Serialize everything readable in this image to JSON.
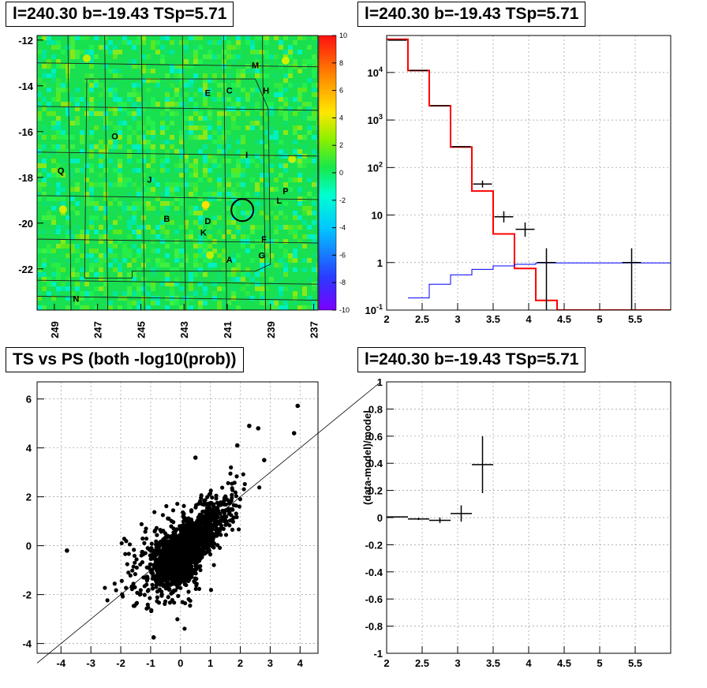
{
  "chart_data": [
    {
      "type": "heatmap",
      "title": "l=240.30 b=-19.43 TSp=5.71",
      "xlim": [
        249.8,
        236.8
      ],
      "ylim": [
        -23.8,
        -11.8
      ],
      "x_ticks": [
        "249",
        "247",
        "245",
        "243",
        "241",
        "239",
        "237"
      ],
      "y_ticks": [
        "-12",
        "-14",
        "-16",
        "-18",
        "-20",
        "-22"
      ],
      "colorbar": {
        "min": -10,
        "max": 10,
        "ticks": [
          "10",
          "8",
          "6",
          "4",
          "2",
          "0",
          "-2",
          "-4",
          "-6",
          "-8",
          "-10"
        ]
      },
      "region_labels": [
        {
          "text": "M",
          "x": 239.7,
          "y": -13.1
        },
        {
          "text": "E",
          "x": 241.9,
          "y": -14.3
        },
        {
          "text": "C",
          "x": 240.9,
          "y": -14.2
        },
        {
          "text": "H",
          "x": 239.2,
          "y": -14.2
        },
        {
          "text": "O",
          "x": 246.2,
          "y": -16.2
        },
        {
          "text": "I",
          "x": 240.1,
          "y": -17.0
        },
        {
          "text": "Q",
          "x": 248.7,
          "y": -17.7
        },
        {
          "text": "J",
          "x": 244.6,
          "y": -18.1
        },
        {
          "text": "P",
          "x": 238.3,
          "y": -18.6
        },
        {
          "text": "L",
          "x": 238.6,
          "y": -19.0
        },
        {
          "text": "B",
          "x": 243.8,
          "y": -19.8
        },
        {
          "text": "D",
          "x": 241.9,
          "y": -19.9
        },
        {
          "text": "K",
          "x": 242.1,
          "y": -20.4
        },
        {
          "text": "F",
          "x": 239.3,
          "y": -20.7
        },
        {
          "text": "G",
          "x": 239.4,
          "y": -21.4
        },
        {
          "text": "A",
          "x": 240.9,
          "y": -21.6
        },
        {
          "text": "N",
          "x": 248.0,
          "y": -23.3
        }
      ],
      "marker_circle": {
        "x": 240.3,
        "y": -19.43
      }
    },
    {
      "type": "line",
      "title": "l=240.30 b=-19.43 TSp=5.71",
      "xlim": [
        2,
        6
      ],
      "ylim": [
        0.1,
        60000
      ],
      "y_scale": "log",
      "x_ticks": [
        "2",
        "2.5",
        "3",
        "3.5",
        "4",
        "4.5",
        "5",
        "5.5"
      ],
      "y_ticks": [
        "10^4",
        "10^3",
        "10^2",
        "10",
        "1",
        "10^-1"
      ],
      "series": [
        {
          "color": "#ff0000",
          "x": [
            2,
            2.3,
            2.6,
            2.9,
            3.2,
            3.5,
            3.8,
            4.1,
            4.4,
            6
          ],
          "y": [
            50000,
            11000,
            2000,
            270,
            32,
            4,
            0.75,
            0.16,
            0.1,
            0.1
          ]
        },
        {
          "color": "#0000ff",
          "x": [
            2.3,
            2.6,
            2.9,
            3.2,
            3.5,
            3.8,
            4.1,
            6
          ],
          "y": [
            0.18,
            0.35,
            0.55,
            0.72,
            0.85,
            0.92,
            0.98,
            1.0
          ]
        }
      ],
      "points": [
        {
          "x": 2.15,
          "y": 48000
        },
        {
          "x": 2.45,
          "y": 11000
        },
        {
          "x": 2.75,
          "y": 2000
        },
        {
          "x": 3.05,
          "y": 275
        },
        {
          "x": 3.35,
          "y": 45,
          "ylo": 38,
          "yhi": 53
        },
        {
          "x": 3.65,
          "y": 9.2,
          "ylo": 7,
          "yhi": 12
        },
        {
          "x": 3.95,
          "y": 5,
          "ylo": 3.5,
          "yhi": 7
        },
        {
          "x": 4.25,
          "y": 1.0,
          "ylo": 0.1,
          "yhi": 2.0
        },
        {
          "x": 5.45,
          "y": 1.0,
          "ylo": 0.1,
          "yhi": 2.0
        }
      ]
    },
    {
      "type": "scatter",
      "title": "TS vs PS (both -log10(prob))",
      "xlim": [
        -4.8,
        4.6
      ],
      "ylim": [
        -4.4,
        6.7
      ],
      "x_ticks": [
        "-4",
        "-3",
        "-2",
        "-1",
        "0",
        "1",
        "2",
        "3",
        "4"
      ],
      "y_ticks": [
        "6",
        "4",
        "2",
        "0",
        "-2",
        "-4"
      ],
      "reference_line": "y = x",
      "highlighted_points": [
        {
          "x": -3.8,
          "y": -0.2
        },
        {
          "x": 3.92,
          "y": 5.72
        },
        {
          "x": 3.8,
          "y": 4.6
        },
        {
          "x": 2.3,
          "y": 4.9
        },
        {
          "x": 2.6,
          "y": 4.8
        },
        {
          "x": 1.9,
          "y": 4.1
        },
        {
          "x": 2.8,
          "y": 3.5
        },
        {
          "x": -0.9,
          "y": -3.75
        },
        {
          "x": 0.5,
          "y": 3.6
        }
      ]
    },
    {
      "type": "scatter",
      "title": "l=240.30 b=-19.43 TSp=5.71",
      "xlim": [
        2,
        6
      ],
      "ylim": [
        -1,
        1
      ],
      "ylabel": "(data-model)/model",
      "x_ticks": [
        "2",
        "2.5",
        "3",
        "3.5",
        "4",
        "4.5",
        "5",
        "5.5"
      ],
      "y_ticks": [
        "1",
        "0.8",
        "0.6",
        "0.4",
        "0.2",
        "0",
        "-0.2",
        "-0.4",
        "-0.6",
        "-0.8",
        "-1"
      ],
      "points": [
        {
          "x": 2.15,
          "y": 0.005,
          "xerr": 0.15,
          "yerr": 0.004
        },
        {
          "x": 2.45,
          "y": -0.01,
          "xerr": 0.15,
          "yerr": 0.008
        },
        {
          "x": 2.75,
          "y": -0.02,
          "xerr": 0.15,
          "yerr": 0.02
        },
        {
          "x": 3.05,
          "y": 0.03,
          "xerr": 0.15,
          "yerr": 0.06
        },
        {
          "x": 3.35,
          "y": 0.39,
          "xerr": 0.15,
          "yerr": 0.21
        }
      ]
    }
  ]
}
